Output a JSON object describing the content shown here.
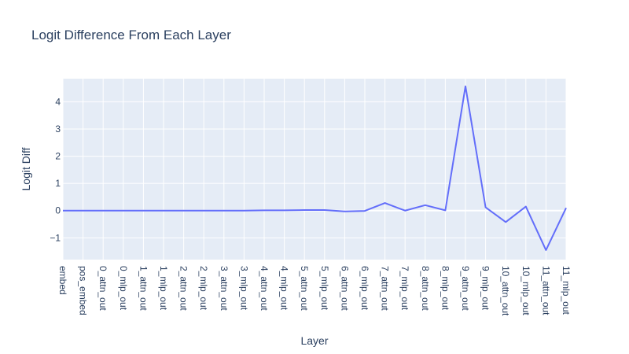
{
  "chart_data": {
    "type": "line",
    "title": "Logit Difference From Each Layer",
    "xlabel": "Layer",
    "ylabel": "Logit Diff",
    "categories": [
      "embed",
      "pos_embed",
      "0_attn_out",
      "0_mlp_out",
      "1_attn_out",
      "1_mlp_out",
      "2_attn_out",
      "2_mlp_out",
      "3_attn_out",
      "3_mlp_out",
      "4_attn_out",
      "4_mlp_out",
      "5_attn_out",
      "5_mlp_out",
      "6_attn_out",
      "6_mlp_out",
      "7_attn_out",
      "7_mlp_out",
      "8_attn_out",
      "8_mlp_out",
      "9_attn_out",
      "9_mlp_out",
      "10_attn_out",
      "10_mlp_out",
      "11_attn_out",
      "11_mlp_out"
    ],
    "series": [
      {
        "values": [
          0,
          0,
          0,
          0,
          0,
          0,
          0,
          0,
          0,
          0,
          0.01,
          0.01,
          0.02,
          0.02,
          -0.03,
          -0.01,
          0.28,
          0,
          0.2,
          0.01,
          4.57,
          0.12,
          -0.42,
          0.15,
          -1.45,
          0.1
        ]
      }
    ],
    "yticks": [
      -1,
      0,
      1,
      2,
      3,
      4
    ],
    "ylim": [
      -1.8,
      4.85
    ],
    "grid": true,
    "line_color": "#636efa",
    "plot_bg": "#e5ecf6"
  }
}
